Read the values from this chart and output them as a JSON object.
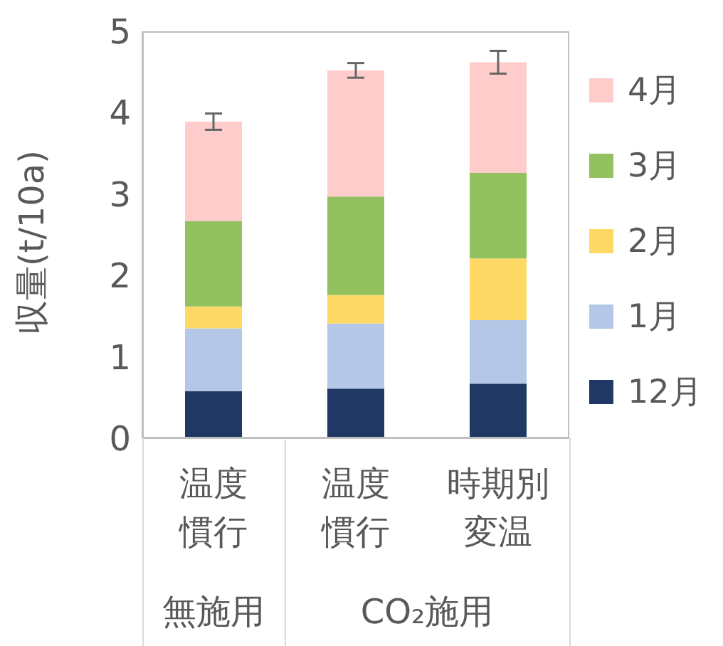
{
  "chart_data": {
    "type": "bar",
    "stacked": true,
    "ylabel": "収量(t/10a)",
    "categories": [
      "温度慣行",
      "温度慣行",
      "時期別変温"
    ],
    "series": [
      {
        "name": "12月",
        "color": "#1f3864",
        "values": [
          0.58,
          0.61,
          0.67
        ]
      },
      {
        "name": "1月",
        "color": "#b4c7e7",
        "values": [
          0.77,
          0.8,
          0.78
        ]
      },
      {
        "name": "2月",
        "color": "#ffd966",
        "values": [
          0.27,
          0.35,
          0.76
        ]
      },
      {
        "name": "3月",
        "color": "#92c15f",
        "values": [
          1.05,
          1.21,
          1.05
        ]
      },
      {
        "name": "4月",
        "color": "#ffcccc",
        "values": [
          1.22,
          1.55,
          1.36
        ],
        "errors": [
          0.1,
          0.09,
          0.14
        ]
      }
    ],
    "annotations": [
      "無施用",
      "CO₂施用"
    ],
    "ylim": [
      0,
      5
    ],
    "yticks": [
      0,
      1,
      2,
      3,
      4,
      5
    ],
    "grid": false,
    "legend": "right"
  }
}
